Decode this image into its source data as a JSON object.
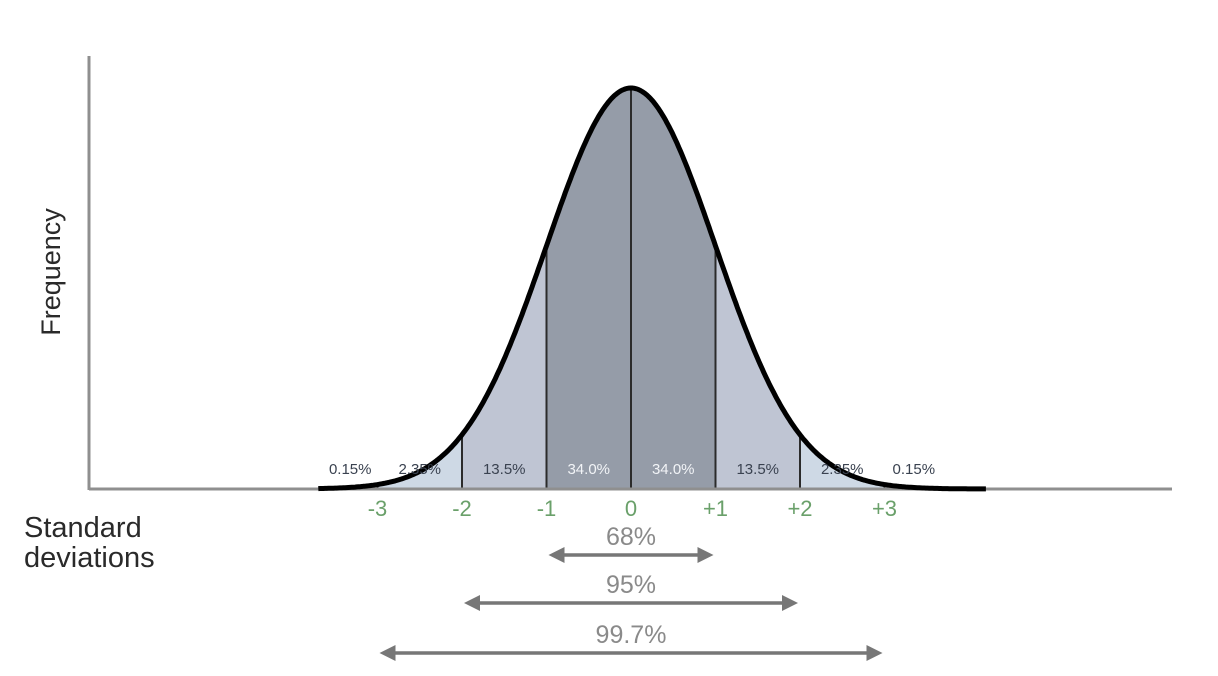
{
  "chart_data": {
    "type": "area",
    "title": "",
    "ylabel": "Frequency",
    "xlabel": "Standard\ndeviations",
    "xlim": [
      -3.7,
      4.2
    ],
    "x_ticks": [
      {
        "value": -3,
        "label": "-3"
      },
      {
        "value": -2,
        "label": "-2"
      },
      {
        "value": -1,
        "label": "-1"
      },
      {
        "value": 0,
        "label": "0"
      },
      {
        "value": 1,
        "label": "+1"
      },
      {
        "value": 2,
        "label": "+2"
      },
      {
        "value": 3,
        "label": "+3"
      }
    ],
    "segments": [
      {
        "from": -4.0,
        "to": -3,
        "label": "0.15%",
        "color": "#e4ebf3"
      },
      {
        "from": -3,
        "to": -2,
        "label": "2.35%",
        "color": "#ced9e5"
      },
      {
        "from": -2,
        "to": -1,
        "label": "13.5%",
        "color": "#bfc5d3"
      },
      {
        "from": -1,
        "to": 0,
        "label": "34.0%",
        "color": "#959ca8"
      },
      {
        "from": 0,
        "to": 1,
        "label": "34.0%",
        "color": "#959ca8"
      },
      {
        "from": 1,
        "to": 2,
        "label": "13.5%",
        "color": "#bfc5d3"
      },
      {
        "from": 2,
        "to": 3,
        "label": "2.35%",
        "color": "#ced9e5"
      },
      {
        "from": 3,
        "to": 4.0,
        "label": "0.15%",
        "color": "#e4ebf3"
      }
    ],
    "ranges": [
      {
        "from": -1,
        "to": 1,
        "label": "68%"
      },
      {
        "from": -2,
        "to": 2,
        "label": "95%"
      },
      {
        "from": -3,
        "to": 3,
        "label": "99.7%"
      }
    ],
    "colors": {
      "curve": "#000000",
      "axis": "#8f8f8f",
      "tick_label": "#6aa06a",
      "range_arrow": "#777777",
      "range_label": "#8a8a8a",
      "segment_label_dark": "#3a4250",
      "segment_label_light": "#f2f4f7"
    }
  }
}
